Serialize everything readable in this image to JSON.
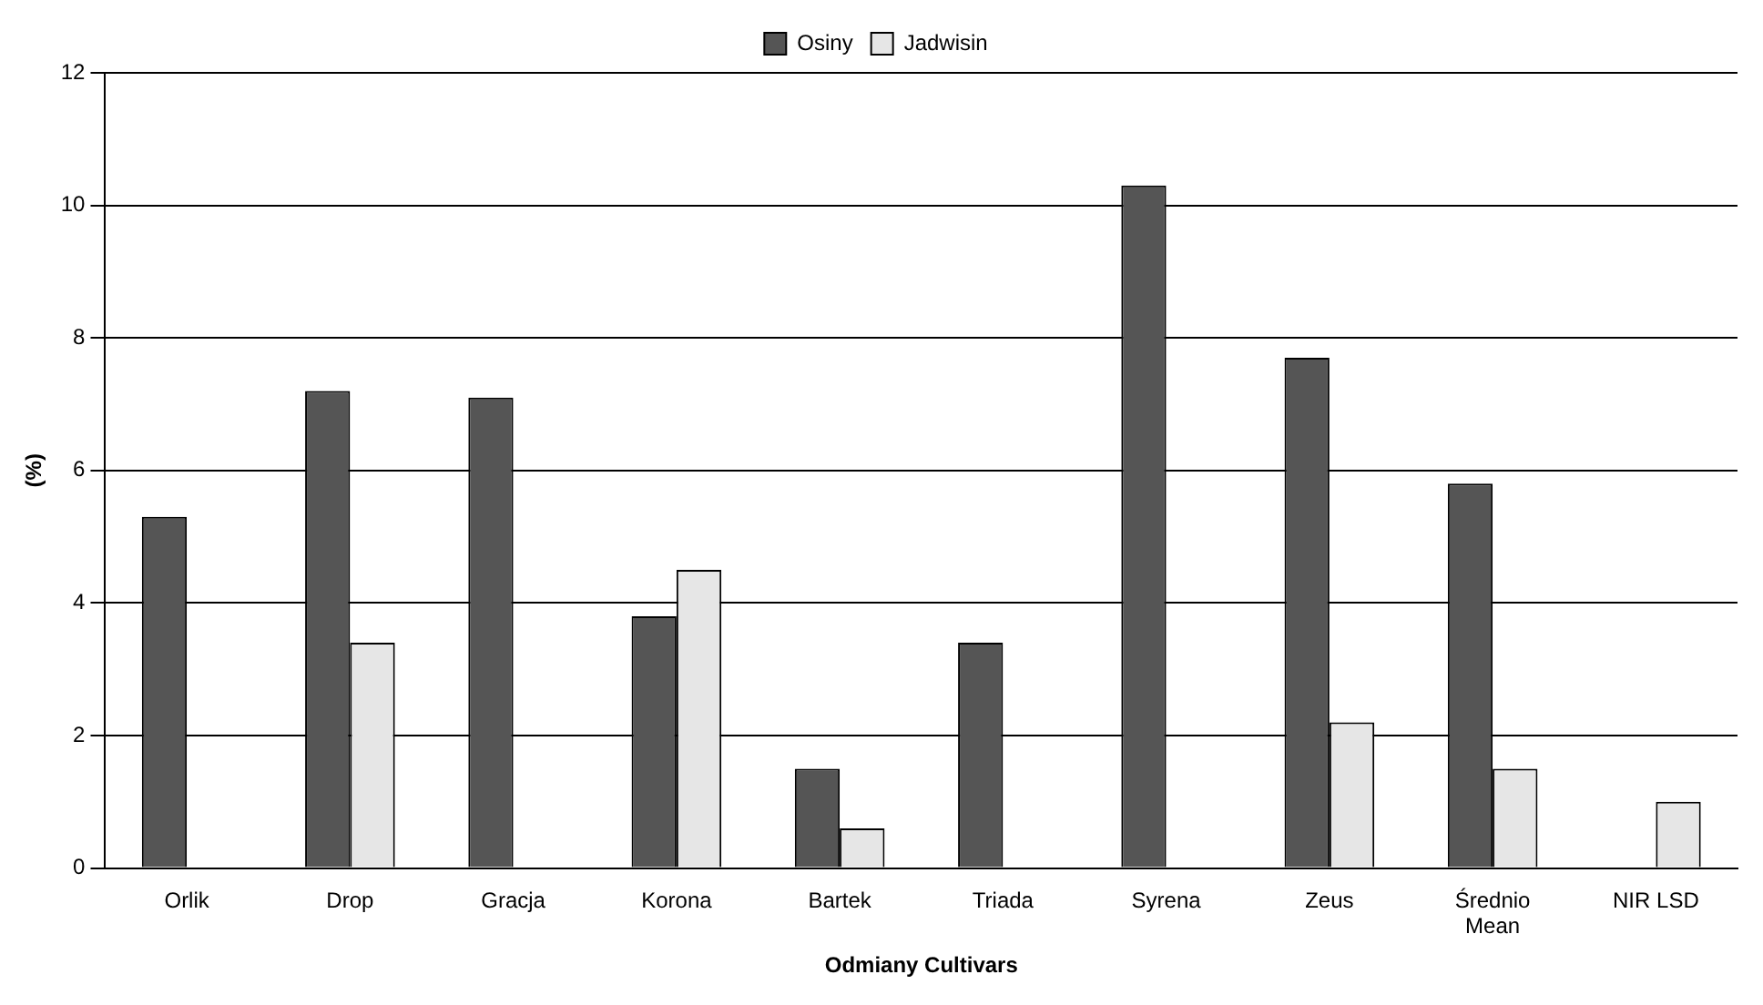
{
  "chart_data": {
    "type": "bar",
    "xlabel": "Odmiany Cultivars",
    "ylabel": "(%)",
    "categories": [
      "Orlik",
      "Drop",
      "Gracja",
      "Korona",
      "Bartek",
      "Triada",
      "Syrena",
      "Zeus",
      "Średnio\nMean",
      "NIR LSD"
    ],
    "series": [
      {
        "name": "Osiny",
        "color": "#555555",
        "values": [
          5.3,
          7.2,
          7.1,
          3.8,
          1.5,
          3.4,
          10.3,
          7.7,
          5.8,
          null
        ]
      },
      {
        "name": "Jadwisin",
        "color": "#e6e6e6",
        "values": [
          null,
          3.4,
          null,
          4.5,
          0.6,
          null,
          null,
          2.2,
          1.5,
          1.0
        ]
      }
    ],
    "ylim": [
      0,
      12
    ],
    "yticks": [
      0,
      2,
      4,
      6,
      8,
      10,
      12
    ],
    "grid": "y",
    "legend": "top"
  }
}
